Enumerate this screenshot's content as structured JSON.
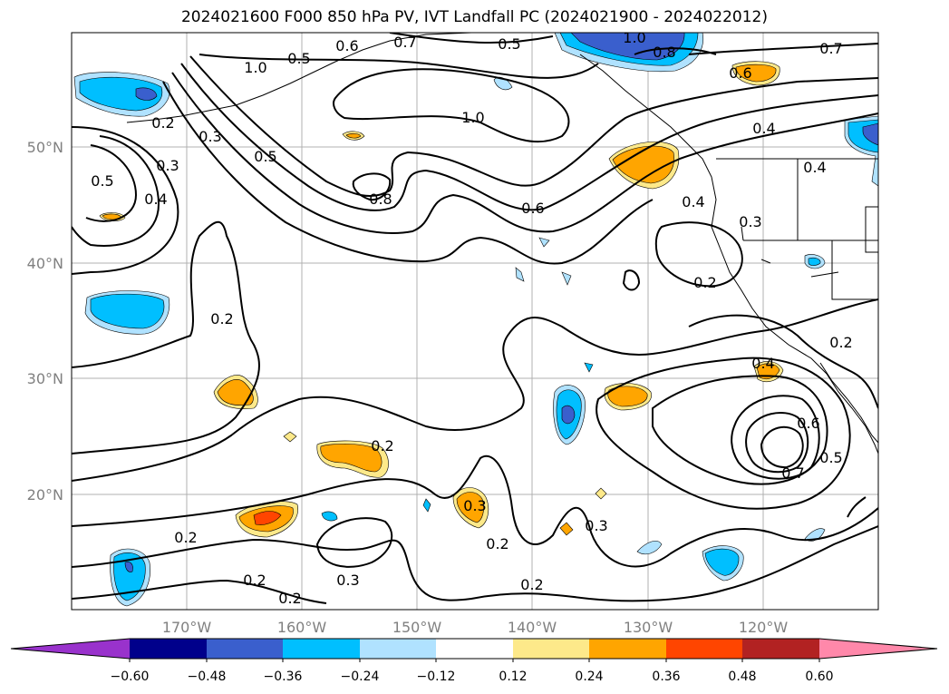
{
  "title": "2024021600 F000 850 hPa PV, IVT Landfall PC (2024021900 - 2024022012)",
  "lat_labels": [
    "50°N",
    "40°N",
    "30°N",
    "20°N"
  ],
  "lon_labels": [
    "170°W",
    "160°W",
    "150°W",
    "140°W",
    "130°W",
    "120°W"
  ],
  "contour_labels": [
    "0.6",
    "0.7",
    "0.5",
    "1.0",
    "0.8",
    "0.7",
    "0.6",
    "1.0",
    "0.5",
    "0.2",
    "0.3",
    "0.5",
    "1.0",
    "0.4",
    "0.5",
    "0.3",
    "0.4",
    "0.8",
    "0.6",
    "0.4",
    "0.3",
    "0.4",
    "0.2",
    "0.2",
    "0.2",
    "0.4",
    "0.6",
    "0.7",
    "0.5",
    "0.2",
    "0.3",
    "0.3",
    "0.2",
    "0.3",
    "0.2",
    "0.2",
    "0.2",
    "0.2"
  ],
  "colorbar": {
    "tick_labels": [
      "−0.60",
      "−0.48",
      "−0.36",
      "−0.24",
      "−0.12",
      "0.12",
      "0.24",
      "0.36",
      "0.48",
      "0.60"
    ],
    "colors": [
      "#9932cc",
      "#00008b",
      "#3a5fcd",
      "#00bfff",
      "#b0e2ff",
      "#ffffff",
      "#fde98a",
      "#ffa500",
      "#ff4500",
      "#b22222",
      "#ff88aa"
    ]
  },
  "fill_colors": {
    "neg_light": "#b0e2ff",
    "neg_mid": "#00bfff",
    "neg_dark": "#3a5fcd",
    "pos_light": "#fde98a",
    "pos_mid": "#ffa500",
    "pos_dark": "#ff4500"
  }
}
